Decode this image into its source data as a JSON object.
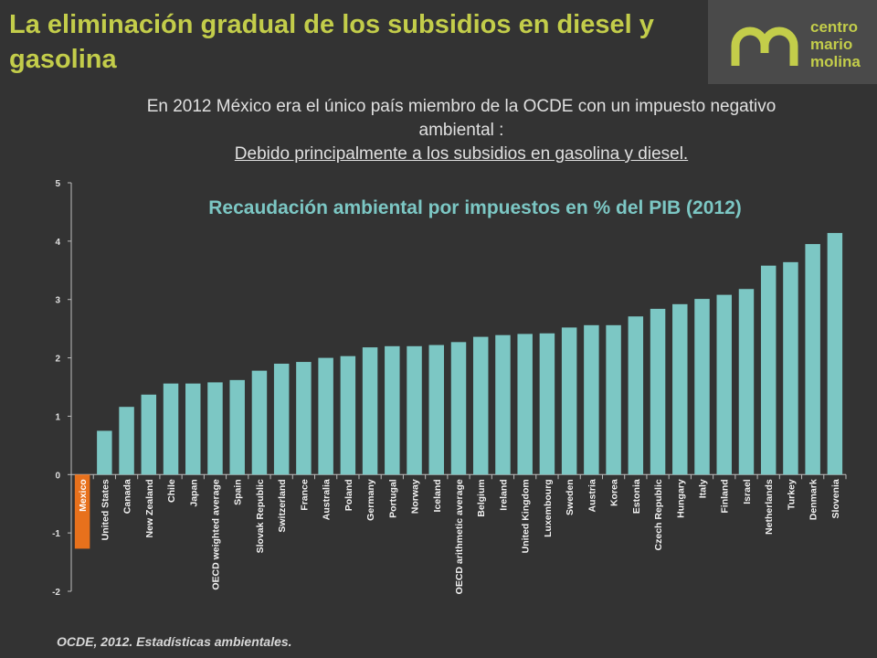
{
  "header": {
    "title": "La eliminación gradual de los subsidios en diesel y gasolina"
  },
  "logo": {
    "line1": "centro",
    "line2": "mario",
    "line3": "molina"
  },
  "subtitle": {
    "line1": "En 2012 México era el único país miembro de la OCDE con un impuesto negativo ambiental :",
    "line2": "Debido principalmente a los subsidios en gasolina y diesel."
  },
  "footer": {
    "source": "OCDE, 2012. Estadísticas ambientales."
  },
  "colors": {
    "bar": "#7cc7c4",
    "highlight": "#e8711c",
    "title": "#c3cd4a"
  },
  "chart_data": {
    "type": "bar",
    "title": "Recaudación ambiental por impuestos en % del PIB (2012)",
    "xlabel": "",
    "ylabel": "",
    "ylim": [
      -2,
      5
    ],
    "yticks": [
      -2,
      -1,
      0,
      1,
      2,
      3,
      4,
      5
    ],
    "highlight": "Mexico",
    "categories": [
      "Mexico",
      "United States",
      "Canada",
      "New Zealand",
      "Chile",
      "Japan",
      "OECD weighted average",
      "Spain",
      "Slovak Republic",
      "Switzerland",
      "France",
      "Australia",
      "Poland",
      "Germany",
      "Portugal",
      "Norway",
      "Iceland",
      "OECD arithmetic average",
      "Belgium",
      "Ireland",
      "United Kingdom",
      "Luxembourg",
      "Sweden",
      "Austria",
      "Korea",
      "Estonia",
      "Czech Republic",
      "Hungary",
      "Italy",
      "Finland",
      "Israel",
      "Netherlands",
      "Turkey",
      "Denmark",
      "Slovenia"
    ],
    "values": [
      -1.27,
      0.75,
      1.16,
      1.37,
      1.56,
      1.56,
      1.58,
      1.62,
      1.78,
      1.9,
      1.93,
      2.0,
      2.03,
      2.18,
      2.2,
      2.2,
      2.22,
      2.27,
      2.36,
      2.39,
      2.41,
      2.42,
      2.52,
      2.56,
      2.56,
      2.71,
      2.84,
      2.92,
      3.01,
      3.08,
      3.18,
      3.58,
      3.64,
      3.95,
      4.14
    ]
  }
}
